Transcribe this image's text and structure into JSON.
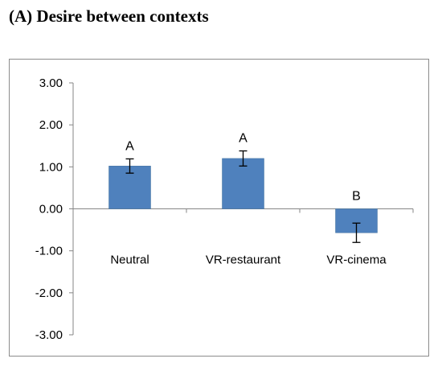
{
  "panel": {
    "title": "(A) Desire between contexts"
  },
  "colors": {
    "bar": "#4f81bd",
    "bar_edge": "#41719c",
    "axis": "#868686",
    "error_bar": "#000000"
  },
  "chart_data": {
    "type": "bar",
    "title": "",
    "xlabel": "",
    "ylabel": "",
    "ylim": [
      -3,
      3
    ],
    "ytick_step": 1,
    "ytick_labels": [
      "3.00",
      "2.00",
      "1.00",
      "0.00",
      "-1.00",
      "-2.00",
      "-3.00"
    ],
    "grid": false,
    "legend": "none",
    "categories": [
      "Neutral",
      "VR-restaurant",
      "VR-cinema"
    ],
    "values": [
      1.02,
      1.2,
      -0.57
    ],
    "errors": [
      0.17,
      0.18,
      0.23
    ],
    "significance_labels": [
      "A",
      "A",
      "B"
    ]
  }
}
